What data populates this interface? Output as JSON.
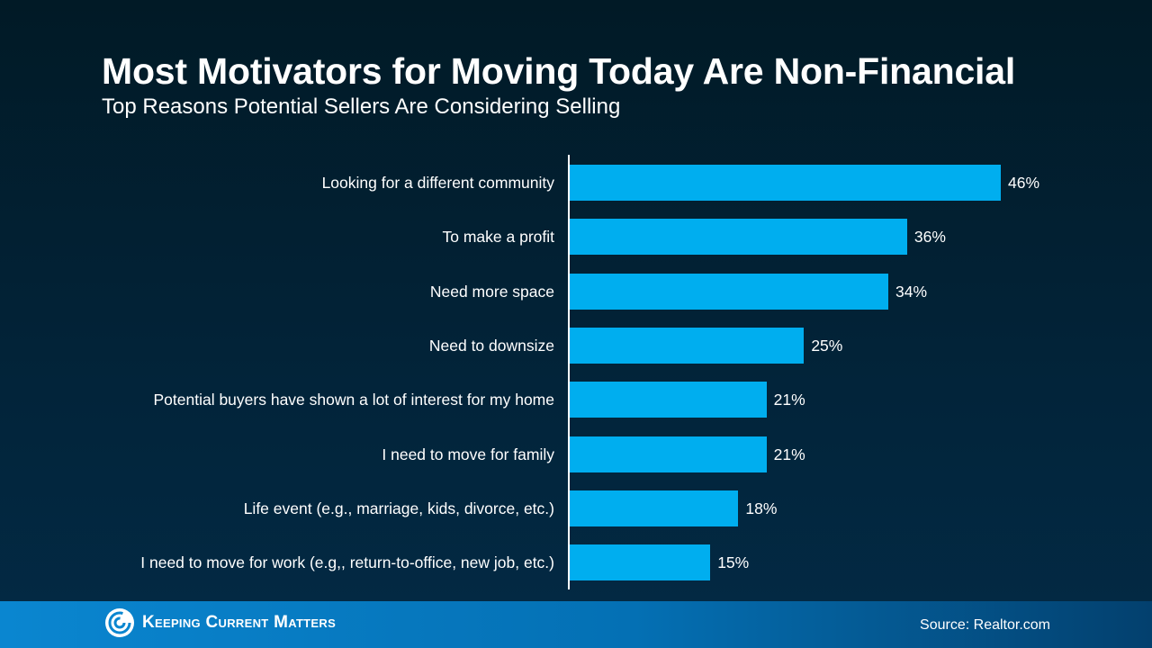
{
  "chart_data": {
    "type": "bar",
    "orientation": "horizontal",
    "title": "Most Motivators for Moving Today Are Non-Financial",
    "subtitle": "Top Reasons Potential Sellers Are Considering Selling",
    "categories": [
      "Looking for a different community",
      "To make a profit",
      "Need more space",
      "Need to downsize",
      "Potential buyers have shown a lot of interest for my home",
      "I need to move for family",
      "Life event (e.g., marriage, kids, divorce, etc.)",
      "I need to move for work (e.g,, return-to-office, new job, etc.)"
    ],
    "values": [
      46,
      36,
      34,
      25,
      21,
      21,
      18,
      15
    ],
    "value_labels": [
      "46%",
      "36%",
      "34%",
      "25%",
      "21%",
      "21%",
      "18%",
      "15%"
    ],
    "xlim": [
      0,
      46
    ],
    "grid": false,
    "bar_color": "#00aeef"
  },
  "footer": {
    "brand": "Keeping Current Matters",
    "source": "Source: Realtor.com"
  }
}
